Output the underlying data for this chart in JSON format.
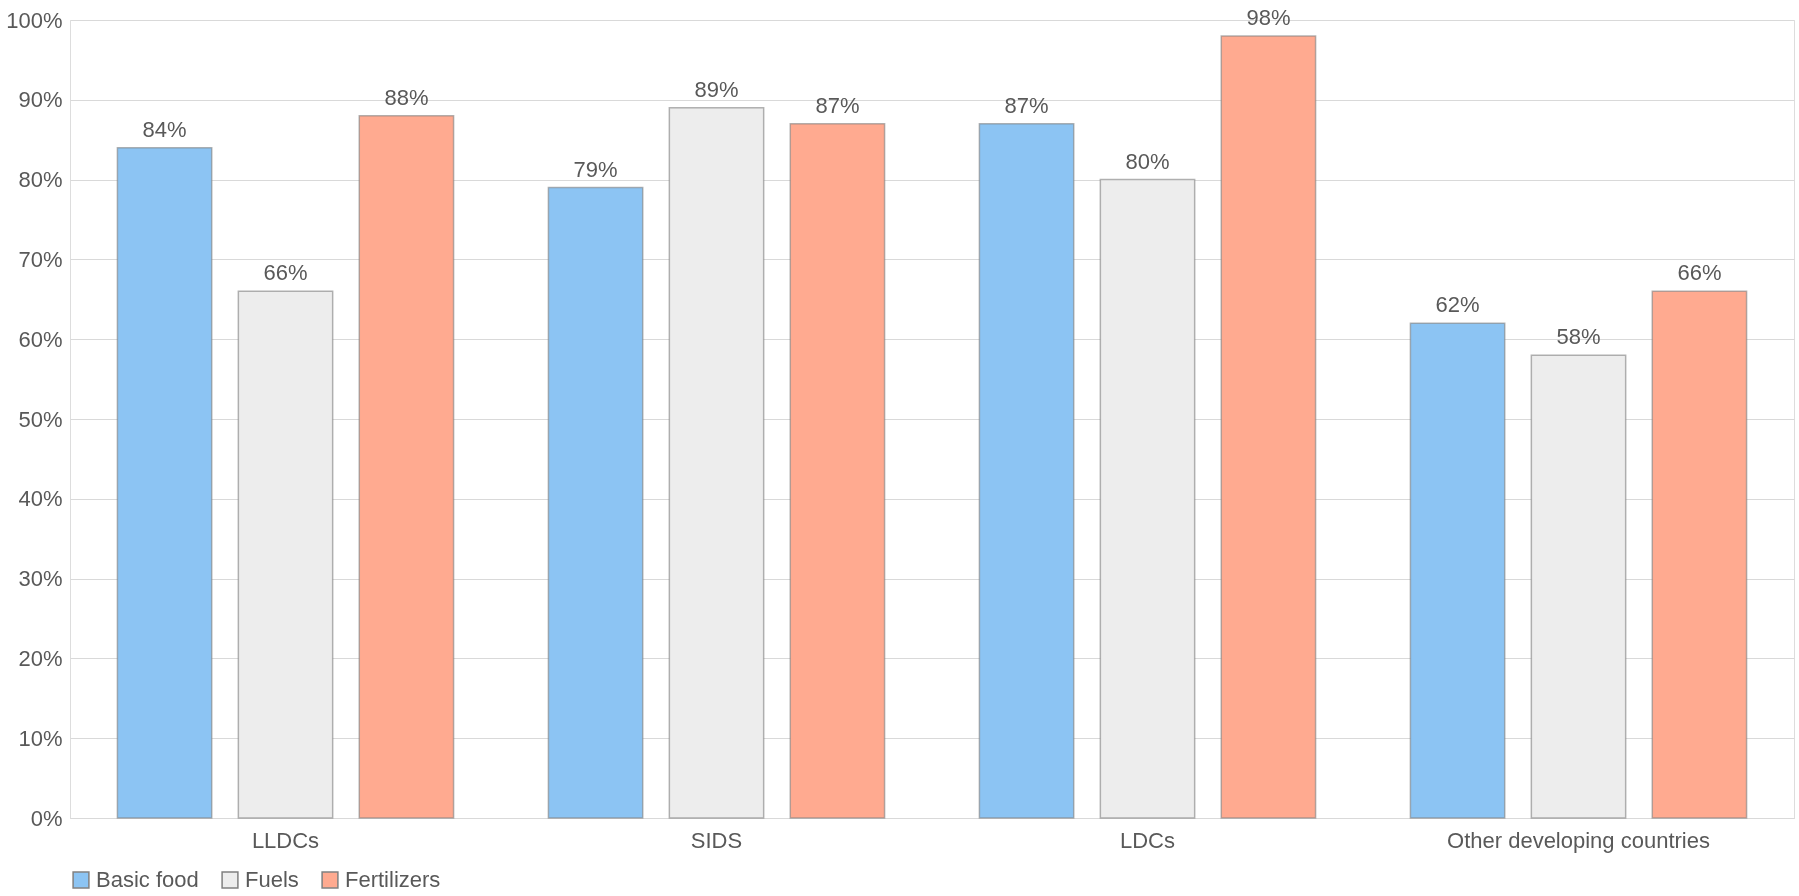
{
  "chart_data": {
    "type": "bar",
    "categories": [
      "LLDCs",
      "SIDS",
      "LDCs",
      "Other developing countries"
    ],
    "series": [
      {
        "name": "Basic food",
        "color": "#8cc4f3",
        "values": [
          84,
          79,
          87,
          62
        ],
        "value_labels": [
          "84%",
          "79%",
          "87%",
          "62%"
        ]
      },
      {
        "name": "Fuels",
        "color": "#ededed",
        "values": [
          66,
          89,
          80,
          58
        ],
        "value_labels": [
          "66%",
          "89%",
          "80%",
          "58%"
        ]
      },
      {
        "name": "Fertilizers",
        "color": "#ffaa90",
        "values": [
          88,
          87,
          98,
          66
        ],
        "value_labels": [
          "88%",
          "87%",
          "98%",
          "66%"
        ]
      }
    ],
    "ylim": [
      0,
      100
    ],
    "yticks": [
      {
        "value": 0,
        "label": "0%"
      },
      {
        "value": 10,
        "label": "10%"
      },
      {
        "value": 20,
        "label": "20%"
      },
      {
        "value": 30,
        "label": "30%"
      },
      {
        "value": 40,
        "label": "40%"
      },
      {
        "value": 50,
        "label": "50%"
      },
      {
        "value": 60,
        "label": "60%"
      },
      {
        "value": 70,
        "label": "70%"
      },
      {
        "value": 80,
        "label": "80%"
      },
      {
        "value": 90,
        "label": "90%"
      },
      {
        "value": 100,
        "label": "100%"
      }
    ],
    "grid": "y",
    "legend": "bottom"
  }
}
